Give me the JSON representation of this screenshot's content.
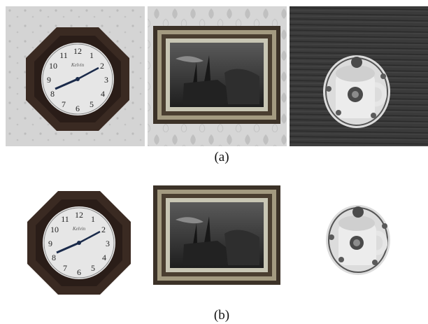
{
  "figure": {
    "rows": [
      {
        "caption": "(a)",
        "panels": [
          {
            "content": "octagonal-wall-clock-on-wallpaper",
            "background": "#cfcfcf"
          },
          {
            "content": "framed-ship-painting-on-damask-wallpaper",
            "background": "#d2d2d2"
          },
          {
            "content": "teacup-on-saucer-on-wood-table",
            "background": "#3a3a3a"
          }
        ]
      },
      {
        "caption": "(b)",
        "panels": [
          {
            "content": "segmented-octagonal-wall-clock",
            "background": "#ffffff"
          },
          {
            "content": "segmented-framed-ship-painting",
            "background": "#ffffff"
          },
          {
            "content": "segmented-teacup-on-saucer",
            "background": "#ffffff"
          }
        ]
      }
    ],
    "clock": {
      "brand_text": "Kelvin",
      "numerals": [
        "12",
        "1",
        "2",
        "3",
        "4",
        "5",
        "6",
        "7",
        "8",
        "9",
        "10",
        "11"
      ]
    }
  }
}
